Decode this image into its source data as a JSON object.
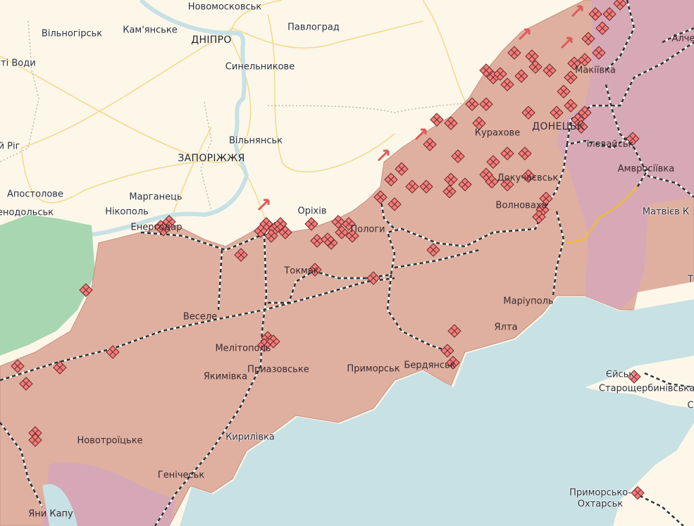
{
  "map": {
    "colors": {
      "land": "#fcf7e9",
      "occupied": "#dfb0a0",
      "occupied_before_2022": "#d6a7b7",
      "sea": "#c7e1e5",
      "green_area": "#a7d6b1",
      "marker_fill": "#f47c7c",
      "marker_stroke": "#6b2a2a",
      "roads": "#f6d98c",
      "frontline_road": "#f0c020"
    },
    "labels": {
      "novomoskovsk": "Новомосковськ",
      "vilnohirsk": "Вільногірськ",
      "kamianske": "Кам'янське",
      "dnipro": "ДНІПРО",
      "pavlohrad": "Павлоград",
      "zhovti_vody": "вті Води",
      "synelnykove": "Синельникове",
      "kryvyi_rih": "й Ріг",
      "vilniansk": "Вільнянськ",
      "zaporizhzhia": "ЗАПОРІЖЖЯ",
      "apostolove": "Апостолове",
      "marhanets": "Марганець",
      "pershotravnevsk": "енодольськ",
      "nikopol": "Нікополь",
      "enerhodar": "Енергодар",
      "orikhiv": "Оріхів",
      "polohy": "Пологи",
      "kurakhove": "Курахове",
      "donetsk": "ДОНЕЦЬК",
      "ilovaisk": "Іловайськ",
      "makiivka": "Макіївка",
      "alchevsk": "Алче",
      "amvrosiivka": "Амвросіївка",
      "dokuchaievsk": "Докучаєвськ",
      "volnovakha": "Волноваха",
      "matviiv_kurhan": "Матвієв К",
      "tokmak": "Токмак",
      "vesele": "Веселе",
      "mariupol": "Маріуполь",
      "melitopol": "Мелітополь",
      "yalta": "Ялта",
      "pryazovske": "Приазовське",
      "prymorsk": "Приморськ",
      "berdiansk": "Бердянськ",
      "yakymivka": "Якимівка",
      "yeisk": "Єйськ",
      "starosherbynivska": "Старощербинівська",
      "novotroitske": "Новотроїцьке",
      "kyrylivka": "Кирилівка",
      "henichesk": "Генічеськ",
      "prymorsko_akhtarsk_1": "Приморсько-",
      "prymorsko_akhtarsk_2": "Охтарськ",
      "yany_kapu": "Яни Капу",
      "taganrog": "Т",
      "right_edge_s": "С"
    },
    "marker_icon": "rhombus-grid-icon",
    "arrow_icon": "arrow-advance-icon"
  }
}
